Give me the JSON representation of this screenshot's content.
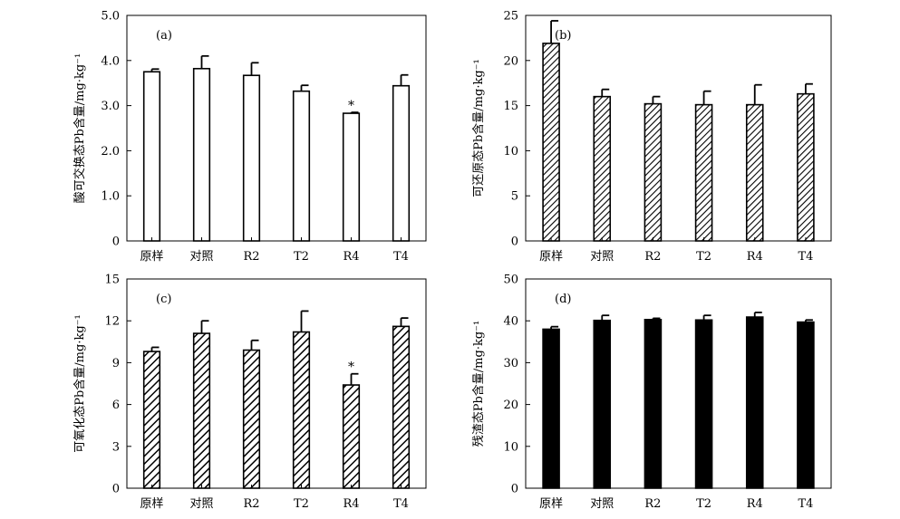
{
  "chart_data": [
    {
      "type": "bar",
      "panel_label": "(a)",
      "ylabel": "酸可交换态Pb含量/mg·kg⁻¹",
      "categories": [
        "原样",
        "对照",
        "R2",
        "T2",
        "R4",
        "T4"
      ],
      "values": [
        3.75,
        3.82,
        3.67,
        3.32,
        2.83,
        3.44
      ],
      "errors": [
        0.06,
        0.28,
        0.28,
        0.13,
        0.02,
        0.24
      ],
      "ylim": [
        0,
        5.0
      ],
      "yticks": [
        "0",
        "1.0",
        "2.0",
        "3.0",
        "4.0",
        "5.0"
      ],
      "fill": "white",
      "annotations": [
        {
          "category": "R4",
          "text": "*"
        }
      ]
    },
    {
      "type": "bar",
      "panel_label": "(b)",
      "ylabel": "可还原态Pb含量/mg·kg⁻¹",
      "categories": [
        "原样",
        "对照",
        "R2",
        "T2",
        "R4",
        "T4"
      ],
      "values": [
        21.9,
        16.0,
        15.2,
        15.1,
        15.1,
        16.3
      ],
      "errors": [
        2.5,
        0.8,
        0.8,
        1.5,
        2.2,
        1.1
      ],
      "ylim": [
        0,
        25
      ],
      "yticks": [
        "0",
        "5",
        "10",
        "15",
        "20",
        "25"
      ],
      "fill": "hatch-fine",
      "annotations": []
    },
    {
      "type": "bar",
      "panel_label": "(c)",
      "ylabel": "可氧化态Pb含量/mg·kg⁻¹",
      "categories": [
        "原样",
        "对照",
        "R2",
        "T2",
        "R4",
        "T4"
      ],
      "values": [
        9.8,
        11.1,
        9.9,
        11.2,
        7.4,
        11.6
      ],
      "errors": [
        0.3,
        0.9,
        0.7,
        1.5,
        0.8,
        0.6
      ],
      "ylim": [
        0,
        15
      ],
      "yticks": [
        "0",
        "3",
        "6",
        "9",
        "12",
        "15"
      ],
      "fill": "hatch-coarse",
      "annotations": [
        {
          "category": "R4",
          "text": "*"
        }
      ]
    },
    {
      "type": "bar",
      "panel_label": "(d)",
      "ylabel": "残渣态Pb含量/mg·kg⁻¹",
      "categories": [
        "原样",
        "对照",
        "R2",
        "T2",
        "R4",
        "T4"
      ],
      "values": [
        38.0,
        40.1,
        40.3,
        40.2,
        40.9,
        39.7
      ],
      "errors": [
        0.6,
        1.2,
        0.3,
        1.1,
        1.1,
        0.5
      ],
      "ylim": [
        0,
        50
      ],
      "yticks": [
        "0",
        "10",
        "20",
        "30",
        "40",
        "50"
      ],
      "fill": "black",
      "annotations": []
    }
  ]
}
